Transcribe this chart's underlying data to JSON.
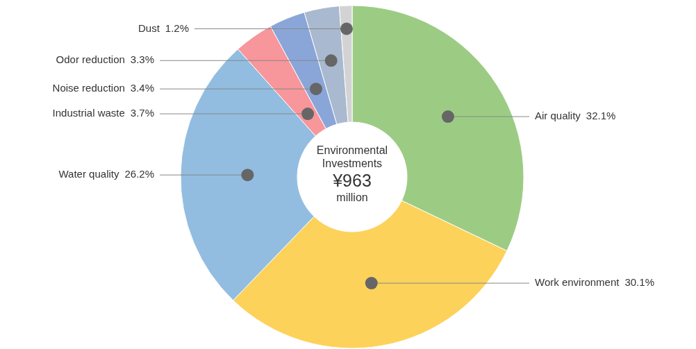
{
  "chart_data": {
    "type": "donut",
    "title": "Environmental Investments",
    "annotations": [
      "¥963",
      "million"
    ],
    "categories": [
      "Air quality",
      "Work environment",
      "Water quality",
      "Industrial waste",
      "Noise reduction",
      "Odor reduction",
      "Dust"
    ],
    "values": [
      32.1,
      30.1,
      26.2,
      3.7,
      3.4,
      3.3,
      1.2
    ],
    "colors": [
      "#9ccc84",
      "#fcd25a",
      "#92bde0",
      "#f7969b",
      "#8aa6d8",
      "#a9b9cf",
      "#d3d3d3"
    ],
    "value_labels": [
      "32.1%",
      "30.1%",
      "26.2%",
      "3.7%",
      "3.4%",
      "3.3%",
      "1.2%"
    ],
    "legend": false
  }
}
